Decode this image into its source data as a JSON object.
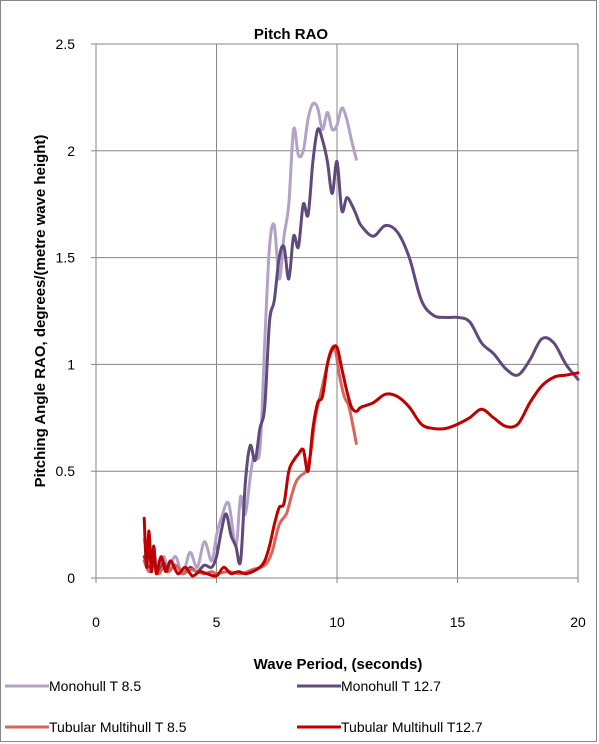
{
  "chart_data": {
    "type": "line",
    "title": "Pitch RAO",
    "xlabel": "Wave Period, (seconds)",
    "ylabel": "Pitching Angle RAO, degrees/(metre wave height)",
    "xlim": [
      0,
      20
    ],
    "ylim": [
      0,
      2.5
    ],
    "x_ticks": [
      "0",
      "5",
      "10",
      "15",
      "20"
    ],
    "y_ticks": [
      "0",
      "0.5",
      "1",
      "1.5",
      "2",
      "2.5"
    ],
    "grid": true,
    "legend_position": "bottom",
    "series": [
      {
        "name": "Monohull T 8.5",
        "color": "#b3a2c7",
        "x": [
          2.0,
          2.2,
          2.4,
          2.6,
          2.8,
          3.0,
          3.3,
          3.6,
          3.9,
          4.2,
          4.5,
          4.8,
          5.0,
          5.2,
          5.5,
          5.8,
          6.0,
          6.2,
          6.5,
          6.8,
          7.0,
          7.2,
          7.4,
          7.6,
          7.8,
          8.0,
          8.2,
          8.4,
          8.6,
          8.8,
          9.0,
          9.2,
          9.4,
          9.6,
          9.8,
          10.0,
          10.2,
          10.4,
          10.6,
          10.8
        ],
        "y": [
          0.18,
          0.08,
          0.12,
          0.03,
          0.1,
          0.05,
          0.1,
          0.02,
          0.12,
          0.05,
          0.17,
          0.08,
          0.2,
          0.28,
          0.35,
          0.15,
          0.38,
          0.3,
          0.55,
          0.6,
          1.1,
          1.55,
          1.65,
          1.4,
          1.6,
          1.75,
          2.1,
          1.98,
          2.0,
          2.15,
          2.22,
          2.2,
          2.1,
          2.18,
          2.1,
          2.12,
          2.2,
          2.15,
          2.05,
          1.96
        ]
      },
      {
        "name": "Monohull T 12.7",
        "color": "#604a7b",
        "x": [
          2.0,
          2.2,
          2.4,
          2.6,
          2.8,
          3.0,
          3.3,
          3.6,
          3.9,
          4.2,
          4.5,
          4.8,
          5.0,
          5.2,
          5.4,
          5.6,
          5.8,
          6.0,
          6.2,
          6.4,
          6.6,
          6.8,
          7.0,
          7.2,
          7.4,
          7.6,
          7.8,
          8.0,
          8.2,
          8.4,
          8.6,
          8.8,
          9.0,
          9.2,
          9.4,
          9.6,
          9.8,
          10.0,
          10.2,
          10.4,
          10.6,
          10.8,
          11.0,
          11.5,
          12.0,
          12.5,
          13.0,
          13.5,
          14.0,
          14.5,
          15.0,
          15.5,
          16.0,
          16.5,
          17.0,
          17.5,
          18.0,
          18.5,
          19.0,
          19.5,
          20.0
        ],
        "y": [
          0.1,
          0.05,
          0.08,
          0.02,
          0.07,
          0.03,
          0.06,
          0.02,
          0.05,
          0.03,
          0.06,
          0.05,
          0.1,
          0.22,
          0.3,
          0.2,
          0.15,
          0.08,
          0.45,
          0.62,
          0.55,
          0.7,
          0.8,
          1.2,
          1.3,
          1.5,
          1.55,
          1.4,
          1.6,
          1.55,
          1.75,
          1.7,
          1.95,
          2.1,
          2.05,
          1.95,
          1.8,
          1.95,
          1.72,
          1.78,
          1.75,
          1.7,
          1.65,
          1.6,
          1.65,
          1.62,
          1.5,
          1.3,
          1.23,
          1.22,
          1.22,
          1.2,
          1.1,
          1.05,
          0.98,
          0.95,
          1.02,
          1.12,
          1.1,
          1.0,
          0.93
        ]
      },
      {
        "name": "Tubular Multihull T 8.5",
        "color": "#d9655f",
        "x": [
          2.0,
          2.2,
          2.4,
          2.6,
          2.8,
          3.0,
          3.3,
          3.6,
          3.9,
          4.2,
          4.5,
          4.8,
          5.0,
          5.5,
          6.0,
          6.5,
          7.0,
          7.3,
          7.6,
          7.9,
          8.1,
          8.3,
          8.5,
          8.7,
          8.9,
          9.1,
          9.3,
          9.5,
          9.7,
          9.9,
          10.1,
          10.3,
          10.5,
          10.8
        ],
        "y": [
          0.08,
          0.03,
          0.06,
          0.02,
          0.05,
          0.03,
          0.06,
          0.02,
          0.04,
          0.03,
          0.02,
          0.03,
          0.02,
          0.03,
          0.02,
          0.04,
          0.06,
          0.12,
          0.25,
          0.3,
          0.38,
          0.45,
          0.48,
          0.5,
          0.58,
          0.75,
          0.85,
          0.95,
          1.05,
          1.08,
          0.95,
          0.85,
          0.8,
          0.63
        ]
      },
      {
        "name": "Tubular Multihull T12.7",
        "color": "#c00000",
        "x": [
          2.0,
          2.1,
          2.2,
          2.3,
          2.4,
          2.5,
          2.7,
          2.9,
          3.1,
          3.4,
          3.7,
          4.0,
          4.3,
          4.6,
          5.0,
          5.3,
          5.6,
          5.9,
          6.2,
          6.5,
          6.8,
          7.0,
          7.2,
          7.4,
          7.6,
          7.8,
          8.0,
          8.2,
          8.4,
          8.6,
          8.8,
          9.0,
          9.2,
          9.4,
          9.6,
          9.8,
          10.0,
          10.2,
          10.4,
          10.6,
          10.8,
          11.0,
          11.5,
          12.0,
          12.5,
          13.0,
          13.5,
          14.0,
          14.5,
          15.0,
          15.5,
          16.0,
          16.5,
          17.0,
          17.5,
          18.0,
          18.5,
          19.0,
          19.5,
          20.0
        ],
        "y": [
          0.28,
          0.05,
          0.22,
          0.03,
          0.15,
          0.02,
          0.1,
          0.03,
          0.08,
          0.02,
          0.05,
          0.01,
          0.03,
          0.02,
          0.01,
          0.05,
          0.02,
          0.03,
          0.02,
          0.03,
          0.05,
          0.08,
          0.15,
          0.25,
          0.33,
          0.35,
          0.5,
          0.55,
          0.58,
          0.6,
          0.5,
          0.7,
          0.82,
          0.85,
          1.0,
          1.07,
          1.08,
          0.98,
          0.88,
          0.8,
          0.78,
          0.8,
          0.82,
          0.86,
          0.85,
          0.8,
          0.72,
          0.7,
          0.7,
          0.72,
          0.75,
          0.79,
          0.75,
          0.71,
          0.72,
          0.82,
          0.9,
          0.94,
          0.95,
          0.96
        ]
      }
    ]
  }
}
